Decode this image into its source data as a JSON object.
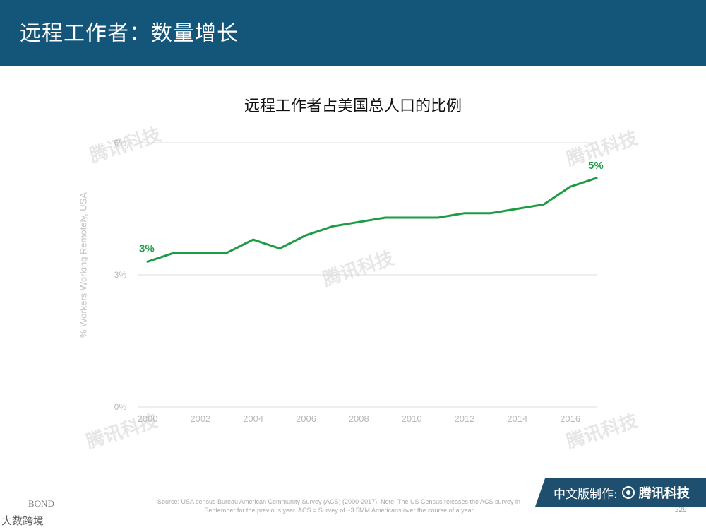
{
  "header": {
    "title": "远程工作者：数量增长"
  },
  "chart_data": {
    "type": "line",
    "title": "远程工作者占美国总人口的比例",
    "ylabel": "% Workers Working Remotely, USA",
    "xlabel": "",
    "ylim": [
      0,
      6
    ],
    "xlim": [
      2000,
      2017
    ],
    "x_ticks": [
      "2000",
      "2002",
      "2004",
      "2006",
      "2008",
      "2010",
      "2012",
      "2014",
      "2016"
    ],
    "y_ticks": [
      "0%",
      "3%",
      "6%"
    ],
    "grid": true,
    "color": "#1e9b45",
    "x": [
      2000,
      2001,
      2002,
      2003,
      2004,
      2005,
      2006,
      2007,
      2008,
      2009,
      2010,
      2011,
      2012,
      2013,
      2014,
      2015,
      2016,
      2017
    ],
    "values": [
      3.3,
      3.5,
      3.5,
      3.5,
      3.8,
      3.6,
      3.9,
      4.1,
      4.2,
      4.3,
      4.3,
      4.3,
      4.4,
      4.4,
      4.5,
      4.6,
      5.0,
      5.2
    ],
    "annotations": [
      {
        "x": 2000,
        "y": 3.3,
        "text": "3%"
      },
      {
        "x": 2017,
        "y": 5.2,
        "text": "5%"
      }
    ]
  },
  "footer": {
    "brand_left": "BOND",
    "source": "Source: USA census Bureau American Community Survey (ACS) (2000-2017).  Note: The US Census releases the ACS survey in September for the previous year.  ACS = Survey of ~3.5MM Americans over the course of a year",
    "badge_label": "中文版制作:",
    "badge_brand": "腾讯科技",
    "page_number": "229",
    "credit": "大数跨境"
  },
  "watermark": {
    "text": "腾讯科技"
  }
}
